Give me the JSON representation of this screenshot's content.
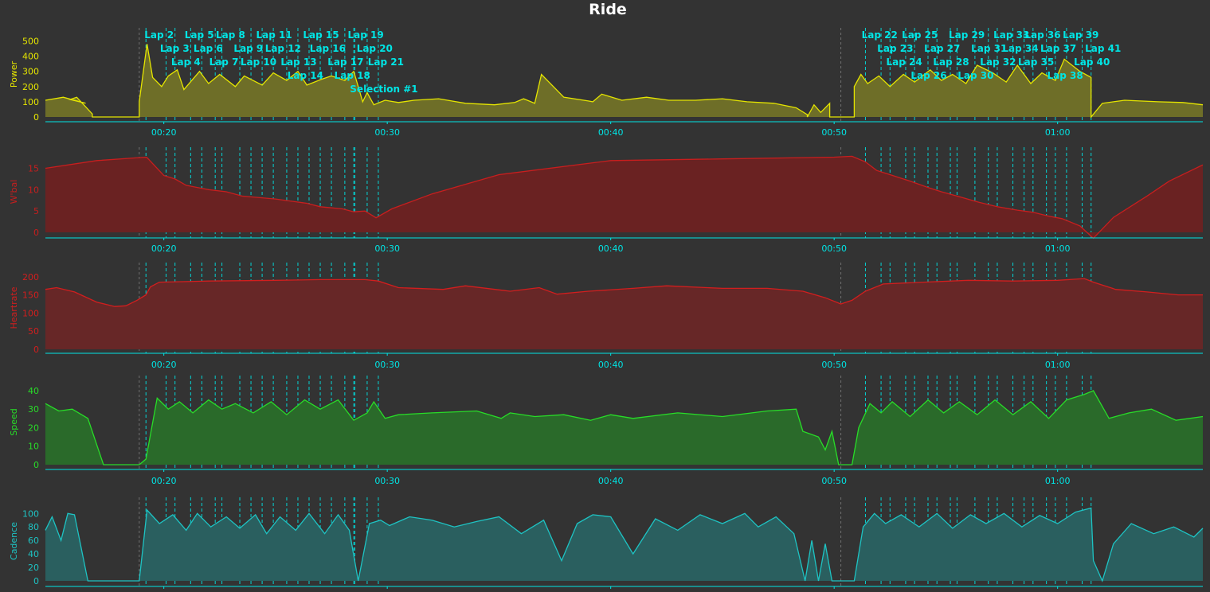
{
  "title": "Ride",
  "colors": {
    "background": "#333333",
    "axis": "#00e5e5",
    "lap_line": "#00e5e5",
    "lap_label": "#00e5e5",
    "power_line": "#e5e500",
    "power_fill": "#6e6e28",
    "wbal_line": "#c81e1e",
    "wbal_fill": "#6a2222",
    "hr_line": "#d21e1e",
    "hr_fill": "#672727",
    "speed_line": "#28dc28",
    "speed_fill": "#2a6a2a",
    "cadence_line": "#1ec3c3",
    "cadence_fill": "#2a5f5f"
  },
  "chart_data": {
    "type": "area",
    "x_unit": "elapsed time",
    "x_range_min": [
      14.7,
      66.5
    ],
    "x_ticks": [
      "00:20",
      "00:30",
      "00:40",
      "00:50",
      "01:00"
    ],
    "x_tick_minutes": [
      20,
      30,
      40,
      50,
      60
    ],
    "panels": [
      {
        "key": "power",
        "ylabel": "Power",
        "ylim": [
          0,
          560
        ],
        "yticks": [
          0,
          100,
          200,
          300,
          400,
          500
        ],
        "series": {
          "t": [
            14.7,
            15.5,
            16.5,
            15.8,
            16.1,
            16.8,
            16.8,
            18.9,
            18.9,
            19.25,
            19.5,
            19.9,
            20.2,
            20.6,
            20.9,
            21.6,
            22.0,
            22.5,
            23.2,
            23.6,
            24.4,
            24.9,
            25.5,
            26.0,
            26.4,
            27.1,
            27.5,
            28.1,
            28.5,
            28.9,
            29.1,
            29.4,
            29.9,
            30.5,
            31.2,
            32.3,
            33.5,
            34.8,
            35.7,
            36.1,
            36.6,
            36.9,
            37.9,
            39.0,
            39.2,
            39.6,
            40.5,
            41.6,
            42.6,
            43.8,
            45.0,
            46.1,
            47.3,
            48.3,
            48.8,
            48.8,
            49.1,
            49.4,
            49.8,
            49.8,
            50.9,
            50.9,
            51.2,
            51.5,
            52.0,
            52.5,
            53.1,
            53.6,
            54.3,
            54.8,
            55.3,
            55.9,
            56.4,
            57.1,
            57.7,
            58.2,
            58.8,
            59.3,
            59.9,
            60.3,
            61.0,
            61.5,
            61.5,
            62.0,
            63.0,
            64.5,
            65.6,
            66.5
          ],
          "v": [
            110,
            130,
            90,
            115,
            130,
            20,
            0,
            0,
            100,
            480,
            260,
            200,
            270,
            310,
            180,
            300,
            220,
            280,
            200,
            270,
            210,
            290,
            240,
            300,
            210,
            250,
            270,
            240,
            300,
            100,
            160,
            80,
            110,
            95,
            110,
            120,
            90,
            80,
            95,
            120,
            90,
            280,
            130,
            105,
            100,
            150,
            110,
            130,
            110,
            110,
            120,
            100,
            90,
            60,
            15,
            0,
            80,
            30,
            90,
            0,
            0,
            200,
            280,
            220,
            270,
            200,
            280,
            230,
            310,
            240,
            280,
            220,
            340,
            290,
            230,
            340,
            220,
            290,
            240,
            380,
            300,
            260,
            0,
            90,
            110,
            100,
            95,
            80
          ]
        }
      },
      {
        "key": "wbal",
        "ylabel": "W'bal",
        "ylim": [
          -1,
          19
        ],
        "yticks": [
          0,
          5,
          10,
          15
        ],
        "series": {
          "t": [
            14.7,
            17,
            19.2,
            19.25,
            20,
            20.5,
            21,
            22,
            22.8,
            23.5,
            25,
            26.4,
            27,
            28,
            28.5,
            29,
            29.5,
            30.2,
            32,
            35,
            40,
            45,
            50,
            50.8,
            51.4,
            51.9,
            52.5,
            53.4,
            54.2,
            54.8,
            55.5,
            56.5,
            57.3,
            58.2,
            58.9,
            59.6,
            60.2,
            61,
            61.6,
            62.5,
            64,
            65,
            66.5
          ],
          "v": [
            15,
            16.8,
            17.6,
            17.5,
            13.3,
            12.5,
            11,
            10,
            9.5,
            8.5,
            7.8,
            6.8,
            6,
            5.5,
            4.8,
            5,
            3.4,
            5.5,
            9,
            13.5,
            16.8,
            17.2,
            17.6,
            17.8,
            16.5,
            14.5,
            13.5,
            12,
            10.5,
            9.5,
            8.5,
            7,
            6,
            5.2,
            4.7,
            3.8,
            3.2,
            1.5,
            -1.4,
            3.5,
            8.5,
            12,
            15.8
          ]
        }
      },
      {
        "key": "hr",
        "ylabel": "Heartrate",
        "ylim": [
          0,
          228
        ],
        "yticks": [
          0,
          50,
          100,
          150,
          200
        ],
        "series": {
          "t": [
            14.7,
            15.2,
            16.0,
            17.0,
            17.8,
            18.3,
            18.8,
            19.2,
            19.4,
            19.8,
            22,
            25,
            27,
            29.0,
            29.6,
            30.5,
            32.5,
            33.5,
            35.5,
            36.8,
            37.6,
            39,
            41,
            42.5,
            45,
            47,
            48.6,
            49.6,
            50.3,
            50.8,
            51.4,
            52.2,
            54,
            56,
            58,
            60,
            61.2,
            61.6,
            62.6,
            64.0,
            65.4,
            66.5
          ],
          "v": [
            165,
            170,
            158,
            130,
            118,
            120,
            135,
            150,
            172,
            185,
            188,
            190,
            192,
            192,
            188,
            170,
            165,
            175,
            160,
            170,
            152,
            160,
            168,
            175,
            168,
            168,
            160,
            142,
            125,
            135,
            160,
            180,
            185,
            190,
            188,
            190,
            195,
            185,
            165,
            158,
            150,
            150
          ]
        }
      },
      {
        "key": "speed",
        "ylabel": "Speed",
        "ylim": [
          0,
          46
        ],
        "yticks": [
          0,
          10,
          20,
          30,
          40
        ],
        "series": {
          "t": [
            14.7,
            15.3,
            15.9,
            16.6,
            17.3,
            17.5,
            18.9,
            19.2,
            19.7,
            20.2,
            20.7,
            21.3,
            22,
            22.6,
            23.2,
            24,
            24.8,
            25.5,
            26.3,
            27,
            27.8,
            28.5,
            29.1,
            29.4,
            29.9,
            30.5,
            32,
            34,
            35.1,
            35.5,
            36.6,
            37.9,
            39.1,
            40,
            41,
            43,
            45,
            47,
            48.3,
            48.6,
            49.3,
            49.6,
            49.9,
            50.2,
            50.8,
            51.1,
            51.6,
            52.1,
            52.6,
            53.4,
            54.2,
            54.9,
            55.6,
            56.4,
            57.2,
            58,
            58.8,
            59.6,
            60.4,
            61.2,
            61.6,
            62.3,
            63.2,
            64.2,
            65.3,
            66.5
          ],
          "v": [
            33,
            29,
            30,
            25,
            0,
            0,
            0,
            3,
            36,
            30,
            34,
            28,
            35,
            30,
            33,
            28,
            34,
            27,
            35,
            30,
            35,
            24,
            28,
            34,
            25,
            27,
            28,
            29,
            25,
            28,
            26,
            27,
            24,
            27,
            25,
            28,
            26,
            29,
            30,
            18,
            15,
            8,
            18,
            0,
            0,
            20,
            33,
            28,
            34,
            26,
            35,
            28,
            34,
            27,
            35,
            27,
            34,
            25,
            35,
            38,
            40,
            25,
            28,
            30,
            24,
            26
          ]
        }
      },
      {
        "key": "cadence",
        "ylabel": "Cadence",
        "ylim": [
          0,
          118
        ],
        "yticks": [
          0,
          20,
          40,
          60,
          80,
          100
        ],
        "series": {
          "t": [
            14.7,
            15.0,
            15.4,
            15.7,
            16.0,
            16.6,
            17.5,
            18.9,
            19.25,
            19.8,
            20.4,
            21.0,
            21.5,
            22.1,
            22.8,
            23.4,
            24.1,
            24.6,
            25.2,
            25.9,
            26.5,
            27.2,
            27.8,
            28.3,
            28.7,
            29.2,
            29.7,
            30.1,
            31,
            32,
            33,
            34,
            35,
            36,
            37,
            37.8,
            38.5,
            39.2,
            40,
            41,
            42,
            43,
            44,
            45,
            46,
            46.6,
            47.4,
            48.2,
            48.7,
            49.0,
            49.3,
            49.6,
            49.9,
            50.3,
            50.9,
            51.3,
            51.8,
            52.3,
            53,
            53.8,
            54.6,
            55.3,
            56.1,
            56.8,
            57.6,
            58.4,
            59.2,
            60,
            60.8,
            61.5,
            61.6,
            62,
            62.5,
            63.3,
            64.3,
            65.2,
            66.1,
            66.5
          ],
          "v": [
            75,
            95,
            60,
            100,
            98,
            0,
            0,
            0,
            105,
            85,
            98,
            75,
            100,
            80,
            95,
            78,
            98,
            70,
            95,
            75,
            100,
            70,
            98,
            75,
            0,
            85,
            90,
            82,
            95,
            90,
            80,
            88,
            95,
            70,
            90,
            30,
            85,
            98,
            95,
            40,
            92,
            75,
            98,
            85,
            100,
            80,
            95,
            70,
            0,
            60,
            0,
            55,
            0,
            0,
            0,
            80,
            100,
            85,
            98,
            80,
            100,
            78,
            98,
            85,
            100,
            80,
            97,
            85,
            102,
            108,
            30,
            0,
            55,
            85,
            70,
            80,
            65,
            78
          ]
        }
      }
    ],
    "laps": [
      19.2,
      20.1,
      20.5,
      21.2,
      21.7,
      22.3,
      22.6,
      23.4,
      23.9,
      24.4,
      24.9,
      25.5,
      26.0,
      26.5,
      27.0,
      27.5,
      28.1,
      28.5,
      29.1,
      28.55,
      29.6,
      51.4,
      52.1,
      52.5,
      53.2,
      53.6,
      54.2,
      54.6,
      55.2,
      55.5,
      56.3,
      56.9,
      57.3,
      58.0,
      58.5,
      58.9,
      59.5,
      59.9,
      60.4,
      61.1,
      61.5
    ],
    "lap_labels": [
      {
        "text": "Lap 2",
        "t": 19.2,
        "row": 0
      },
      {
        "text": "Lap 3",
        "t": 19.9,
        "row": 1
      },
      {
        "text": "Lap 4",
        "t": 20.4,
        "row": 2
      },
      {
        "text": "Lap 5",
        "t": 21.0,
        "row": 0
      },
      {
        "text": "Lap 6",
        "t": 21.4,
        "row": 1
      },
      {
        "text": "Lap 7",
        "t": 22.1,
        "row": 2
      },
      {
        "text": "Lap 8",
        "t": 22.4,
        "row": 0
      },
      {
        "text": "Lap 9",
        "t": 23.2,
        "row": 1
      },
      {
        "text": "Lap 10",
        "t": 23.5,
        "row": 2
      },
      {
        "text": "Lap 11",
        "t": 24.2,
        "row": 0
      },
      {
        "text": "Lap 12",
        "t": 24.6,
        "row": 1
      },
      {
        "text": "Lap 13",
        "t": 25.3,
        "row": 2
      },
      {
        "text": "Lap 14",
        "t": 25.6,
        "row": 3
      },
      {
        "text": "Lap 15",
        "t": 26.3,
        "row": 0
      },
      {
        "text": "Lap 16",
        "t": 26.6,
        "row": 1
      },
      {
        "text": "Lap 17",
        "t": 27.4,
        "row": 2
      },
      {
        "text": "Lap 18",
        "t": 27.7,
        "row": 3
      },
      {
        "text": "Lap 19",
        "t": 28.3,
        "row": 0
      },
      {
        "text": "Lap 20",
        "t": 28.7,
        "row": 1
      },
      {
        "text": "Lap 21",
        "t": 29.2,
        "row": 2
      },
      {
        "text": "Selection #1",
        "t": 28.4,
        "row": 4
      },
      {
        "text": "Lap 22",
        "t": 51.3,
        "row": 0
      },
      {
        "text": "Lap 23",
        "t": 52.0,
        "row": 1
      },
      {
        "text": "Lap 24",
        "t": 52.4,
        "row": 2
      },
      {
        "text": "Lap 25",
        "t": 53.1,
        "row": 0
      },
      {
        "text": "Lap 26",
        "t": 53.5,
        "row": 3
      },
      {
        "text": "Lap 27",
        "t": 54.1,
        "row": 1
      },
      {
        "text": "Lap 28",
        "t": 54.5,
        "row": 2
      },
      {
        "text": "Lap 29",
        "t": 55.2,
        "row": 0
      },
      {
        "text": "Lap 30",
        "t": 55.6,
        "row": 3
      },
      {
        "text": "Lap 31",
        "t": 56.2,
        "row": 1
      },
      {
        "text": "Lap 32",
        "t": 56.6,
        "row": 2
      },
      {
        "text": "Lap 33",
        "t": 57.2,
        "row": 0
      },
      {
        "text": "Lap 34",
        "t": 57.6,
        "row": 1
      },
      {
        "text": "Lap 35",
        "t": 58.3,
        "row": 2
      },
      {
        "text": "Lap 36",
        "t": 58.6,
        "row": 0
      },
      {
        "text": "Lap 37",
        "t": 59.3,
        "row": 1
      },
      {
        "text": "Lap 38",
        "t": 59.6,
        "row": 3
      },
      {
        "text": "Lap 39",
        "t": 60.3,
        "row": 0
      },
      {
        "text": "Lap 40",
        "t": 60.8,
        "row": 2
      },
      {
        "text": "Lap 41",
        "t": 61.3,
        "row": 1
      }
    ]
  }
}
